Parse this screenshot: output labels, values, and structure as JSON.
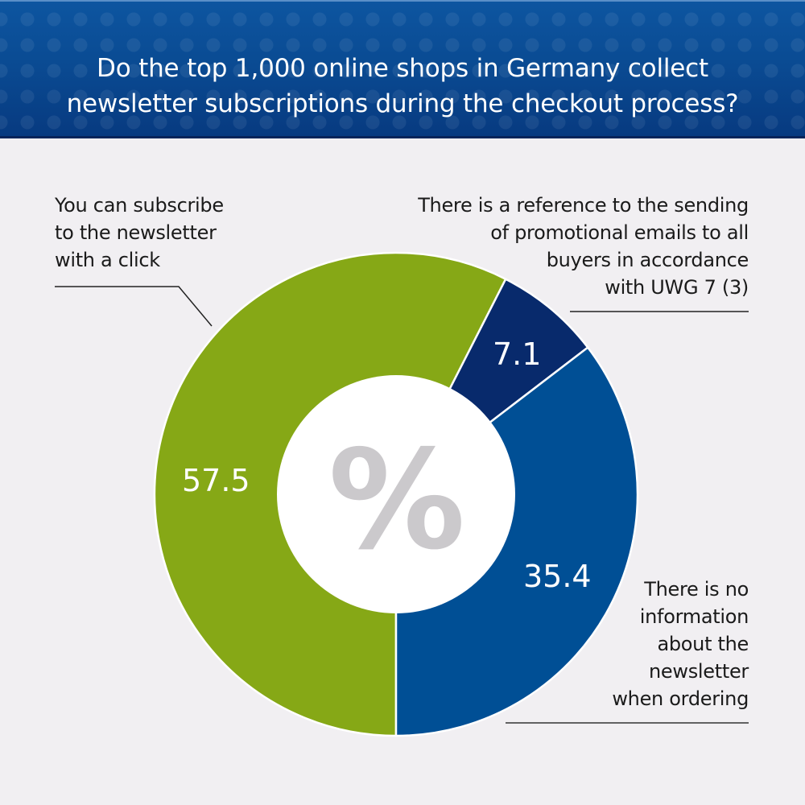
{
  "header": {
    "title_lines": [
      "Do the top 1,000 online shops in Germany collect",
      "newsletter subscriptions during the checkout process?"
    ]
  },
  "center_symbol": "%",
  "annotations": {
    "left": [
      "You can subscribe",
      "to the newsletter",
      "with a click"
    ],
    "right_top": [
      "There is a reference to the sending",
      "of promotional emails to all",
      "buyers in accordance",
      "with UWG 7 (3)"
    ],
    "right_bottom": [
      "There is no",
      "information",
      "about the",
      "newsletter",
      "when ordering"
    ]
  },
  "value_labels": {
    "green": "57.5",
    "navy": "7.1",
    "blue": "35.4"
  },
  "colors": {
    "header_blue": "#0a4b93",
    "green": "#86a816",
    "navy": "#082a6c",
    "blue": "#004f95",
    "center_symbol": "#cbc9cc",
    "background": "#f1eff2"
  },
  "chart_data": {
    "type": "pie",
    "variant": "donut",
    "title": "Do the top 1,000 online shops in Germany collect newsletter subscriptions during the checkout process?",
    "unit": "%",
    "categories": [
      "You can subscribe to the newsletter with a click",
      "There is a reference to the sending of promotional emails to all buyers in accordance with UWG 7 (3)",
      "There is no information about the newsletter when ordering"
    ],
    "values": [
      57.5,
      7.1,
      35.4
    ],
    "colors": [
      "#86a816",
      "#082a6c",
      "#004f95"
    ],
    "center_label": "%",
    "legend": "callout annotations"
  }
}
